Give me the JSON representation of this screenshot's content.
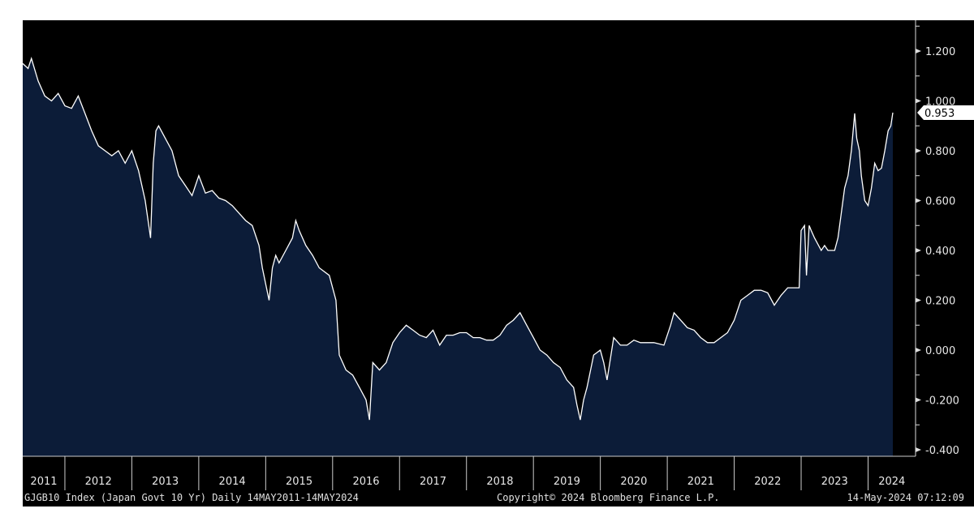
{
  "chart_data": {
    "type": "area",
    "title": "GJGB10 Index (Japan Govt 10 Yr)",
    "ylabel": "",
    "xlabel": "",
    "ylim": [
      -0.4,
      1.3
    ],
    "y_ticks": [
      -0.4,
      -0.2,
      0.0,
      0.2,
      0.4,
      0.6,
      0.8,
      1.0,
      1.2
    ],
    "y_tick_labels": [
      "-0.400",
      "-0.200",
      "0.000",
      "0.200",
      "0.400",
      "0.600",
      "0.800",
      "1.000",
      "1.200"
    ],
    "x_range": [
      2011.37,
      2024.37
    ],
    "year_labels": [
      "2011",
      "2012",
      "2013",
      "2014",
      "2015",
      "2016",
      "2017",
      "2018",
      "2019",
      "2020",
      "2021",
      "2022",
      "2023",
      "2024"
    ],
    "last_value_label": "0.953",
    "series": [
      {
        "name": "GJGB10",
        "x": [
          2011.37,
          2011.45,
          2011.5,
          2011.6,
          2011.7,
          2011.8,
          2011.9,
          2012.0,
          2012.1,
          2012.2,
          2012.3,
          2012.4,
          2012.5,
          2012.6,
          2012.7,
          2012.8,
          2012.9,
          2013.0,
          2013.1,
          2013.2,
          2013.28,
          2013.32,
          2013.36,
          2013.4,
          2013.5,
          2013.6,
          2013.7,
          2013.8,
          2013.9,
          2014.0,
          2014.1,
          2014.2,
          2014.3,
          2014.4,
          2014.5,
          2014.6,
          2014.7,
          2014.8,
          2014.9,
          2014.95,
          2015.05,
          2015.1,
          2015.15,
          2015.2,
          2015.3,
          2015.4,
          2015.45,
          2015.5,
          2015.6,
          2015.7,
          2015.8,
          2015.95,
          2016.05,
          2016.1,
          2016.2,
          2016.3,
          2016.4,
          2016.5,
          2016.55,
          2016.6,
          2016.7,
          2016.8,
          2016.9,
          2017.0,
          2017.1,
          2017.2,
          2017.3,
          2017.4,
          2017.5,
          2017.6,
          2017.7,
          2017.8,
          2017.9,
          2018.0,
          2018.1,
          2018.2,
          2018.3,
          2018.4,
          2018.5,
          2018.6,
          2018.7,
          2018.8,
          2018.9,
          2019.0,
          2019.1,
          2019.2,
          2019.3,
          2019.4,
          2019.5,
          2019.6,
          2019.65,
          2019.7,
          2019.75,
          2019.8,
          2019.9,
          2020.0,
          2020.05,
          2020.1,
          2020.2,
          2020.3,
          2020.4,
          2020.5,
          2020.6,
          2020.7,
          2020.8,
          2020.95,
          2021.05,
          2021.1,
          2021.2,
          2021.3,
          2021.4,
          2021.5,
          2021.6,
          2021.7,
          2021.8,
          2021.9,
          2022.0,
          2022.1,
          2022.2,
          2022.3,
          2022.4,
          2022.5,
          2022.6,
          2022.7,
          2022.8,
          2022.95,
          2022.97,
          2023.0,
          2023.05,
          2023.08,
          2023.12,
          2023.15,
          2023.2,
          2023.3,
          2023.35,
          2023.4,
          2023.5,
          2023.55,
          2023.6,
          2023.65,
          2023.7,
          2023.75,
          2023.8,
          2023.83,
          2023.87,
          2023.9,
          2023.95,
          2024.0,
          2024.05,
          2024.1,
          2024.15,
          2024.2,
          2024.25,
          2024.3,
          2024.34,
          2024.37
        ],
        "y": [
          1.15,
          1.13,
          1.17,
          1.08,
          1.02,
          1.0,
          1.03,
          0.98,
          0.97,
          1.02,
          0.95,
          0.88,
          0.82,
          0.8,
          0.78,
          0.8,
          0.75,
          0.8,
          0.72,
          0.6,
          0.45,
          0.75,
          0.88,
          0.9,
          0.85,
          0.8,
          0.7,
          0.66,
          0.62,
          0.7,
          0.63,
          0.64,
          0.61,
          0.6,
          0.58,
          0.55,
          0.52,
          0.5,
          0.42,
          0.33,
          0.2,
          0.33,
          0.38,
          0.35,
          0.4,
          0.45,
          0.52,
          0.48,
          0.42,
          0.38,
          0.33,
          0.3,
          0.2,
          -0.02,
          -0.08,
          -0.1,
          -0.15,
          -0.2,
          -0.28,
          -0.05,
          -0.08,
          -0.05,
          0.03,
          0.07,
          0.1,
          0.08,
          0.06,
          0.05,
          0.08,
          0.02,
          0.06,
          0.06,
          0.07,
          0.07,
          0.05,
          0.05,
          0.04,
          0.04,
          0.06,
          0.1,
          0.12,
          0.15,
          0.1,
          0.05,
          0.0,
          -0.02,
          -0.05,
          -0.07,
          -0.12,
          -0.15,
          -0.22,
          -0.28,
          -0.2,
          -0.15,
          -0.02,
          0.0,
          -0.05,
          -0.12,
          0.05,
          0.02,
          0.02,
          0.04,
          0.03,
          0.03,
          0.03,
          0.02,
          0.1,
          0.15,
          0.12,
          0.09,
          0.08,
          0.05,
          0.03,
          0.03,
          0.05,
          0.07,
          0.12,
          0.2,
          0.22,
          0.24,
          0.24,
          0.23,
          0.18,
          0.22,
          0.25,
          0.25,
          0.25,
          0.48,
          0.5,
          0.3,
          0.5,
          0.48,
          0.45,
          0.4,
          0.42,
          0.4,
          0.4,
          0.45,
          0.55,
          0.65,
          0.7,
          0.8,
          0.95,
          0.85,
          0.8,
          0.7,
          0.6,
          0.58,
          0.65,
          0.75,
          0.72,
          0.73,
          0.8,
          0.88,
          0.9,
          0.953
        ]
      }
    ],
    "colors": {
      "background": "#000000",
      "area": "#0c1c38",
      "line": "#ffffff",
      "text": "#e8e8e8"
    }
  },
  "footer": {
    "left": "GJGB10 Index (Japan Govt 10 Yr)  Daily 14MAY2011-14MAY2024",
    "center": "Copyright© 2024 Bloomberg Finance L.P.",
    "right": "14-May-2024 07:12:09"
  }
}
